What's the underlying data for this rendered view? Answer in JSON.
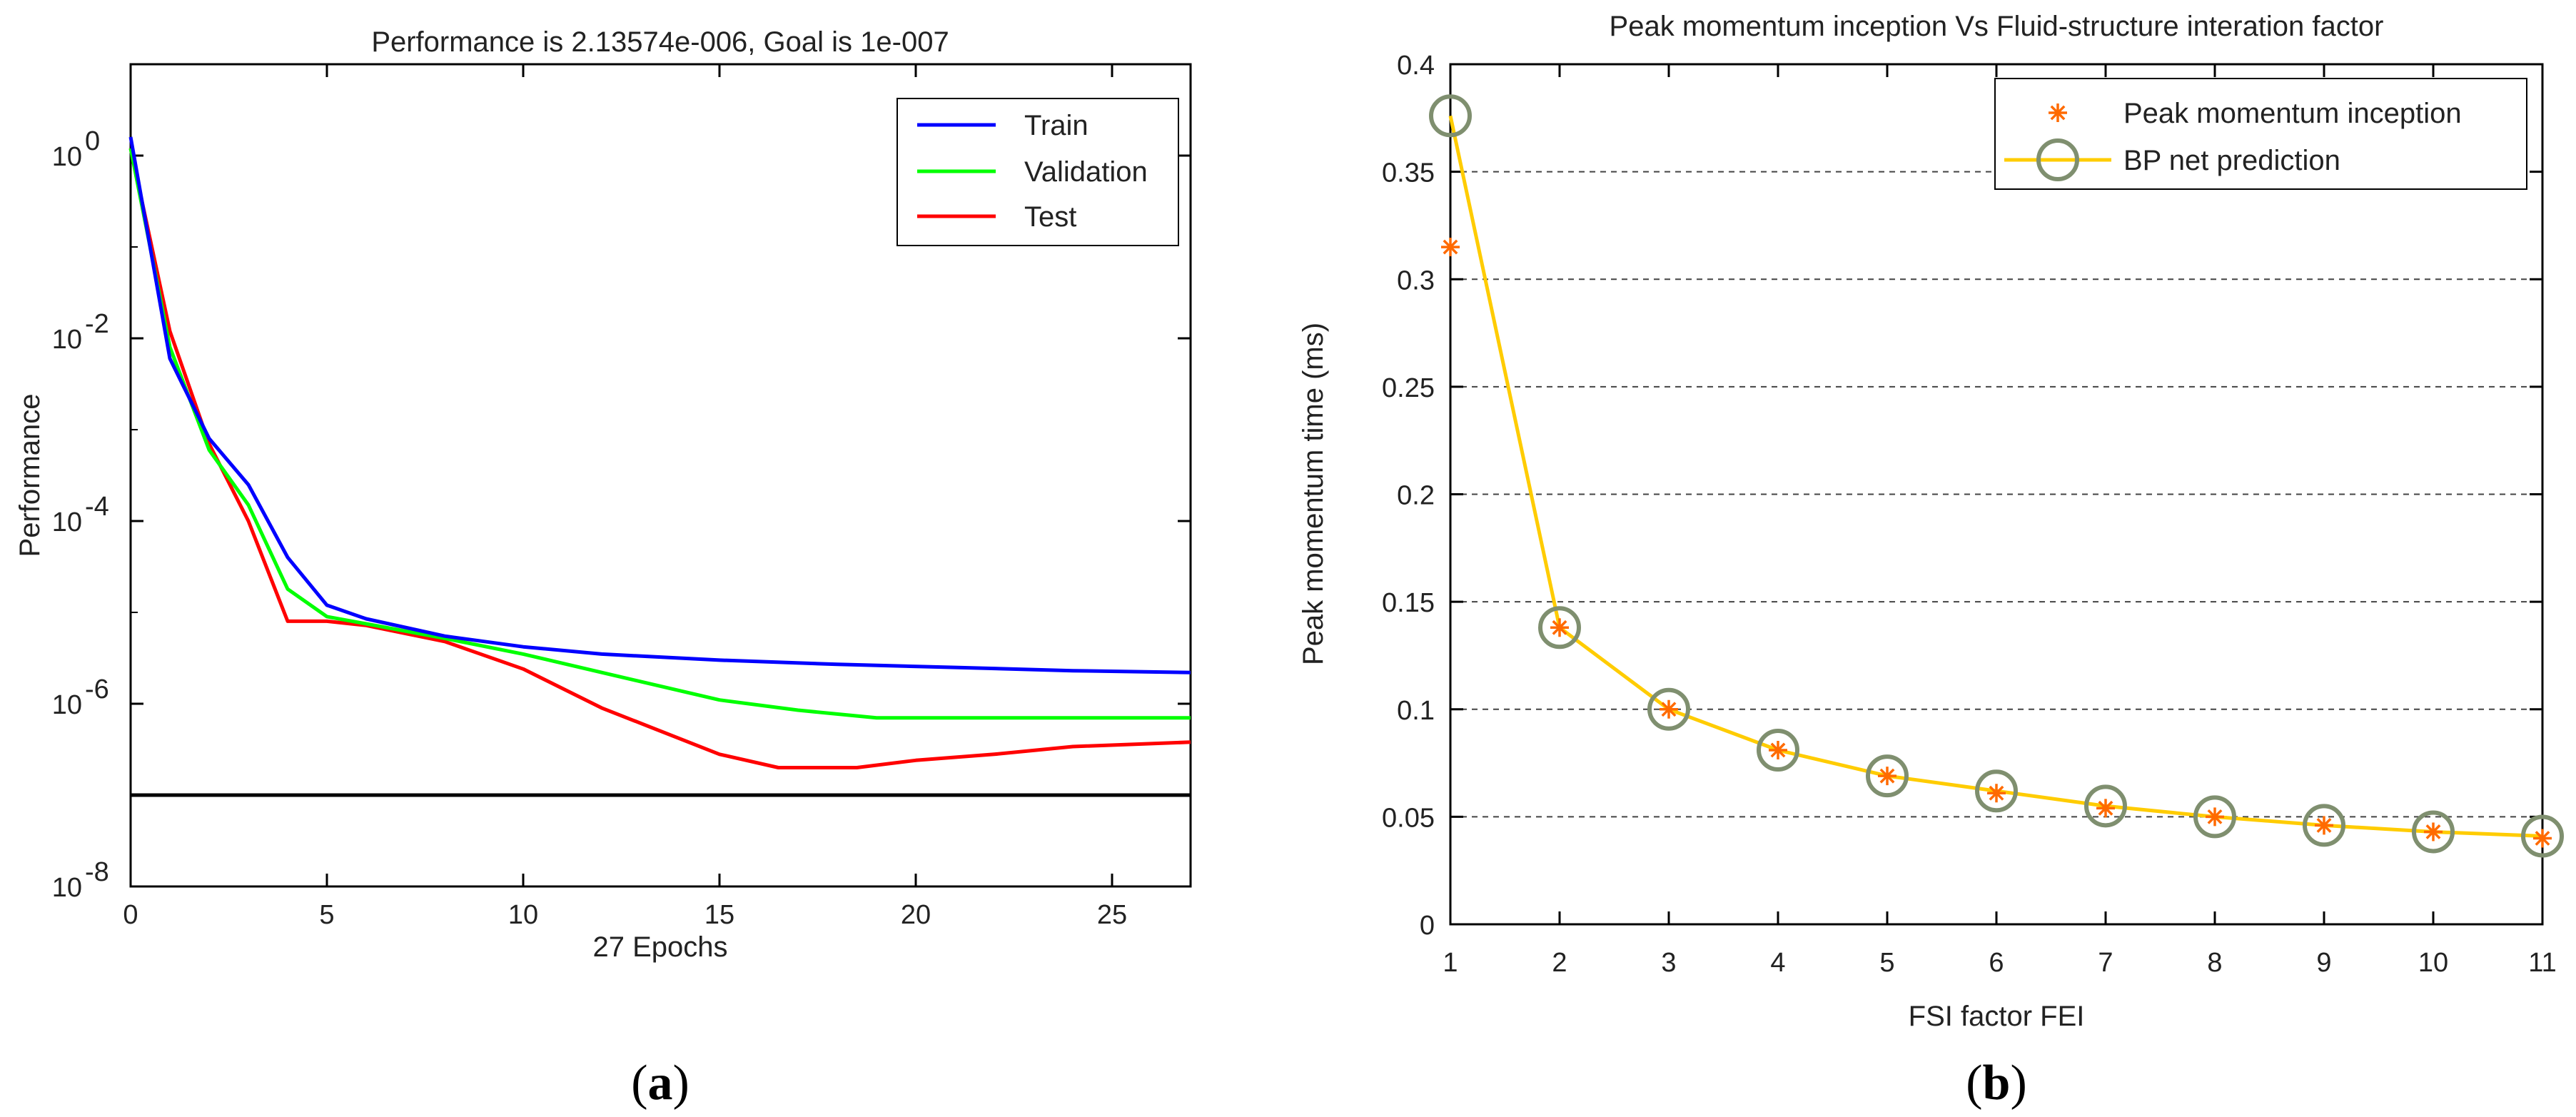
{
  "chart_data": [
    {
      "type": "line",
      "panel": "a",
      "title": "Performance is 2.13574e-006, Goal is 1e-007",
      "xlabel": "27 Epochs",
      "ylabel": "Performance",
      "yscale": "log",
      "xlim": [
        0,
        27
      ],
      "ylim_exponent": [
        -8,
        1
      ],
      "xticks": [
        "0",
        "5",
        "10",
        "15",
        "20",
        "25"
      ],
      "xtick_values": [
        0,
        5,
        10,
        15,
        20,
        25
      ],
      "yticks": [
        {
          "base": "10",
          "exp": "0",
          "e": 0
        },
        {
          "base": "10",
          "exp": "-2",
          "e": -2
        },
        {
          "base": "10",
          "exp": "-4",
          "e": -4
        },
        {
          "base": "10",
          "exp": "-6",
          "e": -6
        },
        {
          "base": "10",
          "exp": "-8",
          "e": -8
        }
      ],
      "legend_position": "top-right",
      "goal": {
        "value": 1e-07,
        "color": "#000000"
      },
      "series": [
        {
          "name": "Train",
          "color": "#0000ff",
          "x": [
            0,
            1,
            2,
            3,
            4,
            5,
            6,
            8,
            10,
            12,
            15,
            18,
            21,
            24,
            27
          ],
          "y": [
            1.6,
            0.006,
            0.0008,
            0.00025,
            4e-05,
            1.2e-05,
            8.5e-06,
            5.5e-06,
            4.2e-06,
            3.5e-06,
            3e-06,
            2.7e-06,
            2.5e-06,
            2.3e-06,
            2.2e-06
          ]
        },
        {
          "name": "Validation",
          "color": "#00ff00",
          "x": [
            0,
            1,
            2,
            3,
            4,
            5,
            6,
            8,
            10,
            12,
            15,
            17,
            19,
            21,
            24,
            27
          ],
          "y": [
            1.2,
            0.008,
            0.0006,
            0.00015,
            1.8e-05,
            9e-06,
            7.5e-06,
            5.2e-06,
            3.5e-06,
            2.2e-06,
            1.1e-06,
            8.5e-07,
            7e-07,
            7e-07,
            7e-07,
            7e-07
          ]
        },
        {
          "name": "Test",
          "color": "#ff0000",
          "x": [
            0,
            1,
            2,
            3,
            4,
            5,
            6,
            8,
            10,
            12,
            15,
            16.5,
            18.5,
            20,
            22,
            24,
            27
          ],
          "y": [
            1.2,
            0.012,
            0.0007,
            0.0001,
            8e-06,
            8e-06,
            7.2e-06,
            4.8e-06,
            2.4e-06,
            9e-07,
            2.8e-07,
            2e-07,
            2e-07,
            2.4e-07,
            2.8e-07,
            3.4e-07,
            3.8e-07
          ]
        }
      ]
    },
    {
      "type": "line",
      "panel": "b",
      "title": "Peak momentum inception Vs Fluid-structure interation factor",
      "xlabel": "FSI factor FEI",
      "ylabel": "Peak momentum time (ms)",
      "xlim": [
        1,
        11
      ],
      "ylim": [
        0,
        0.4
      ],
      "xticks": [
        "1",
        "2",
        "3",
        "4",
        "5",
        "6",
        "7",
        "8",
        "9",
        "10",
        "11"
      ],
      "xtick_values": [
        1,
        2,
        3,
        4,
        5,
        6,
        7,
        8,
        9,
        10,
        11
      ],
      "yticks": [
        "0",
        "0.05",
        "0.1",
        "0.15",
        "0.2",
        "0.25",
        "0.3",
        "0.35",
        "0.4"
      ],
      "ytick_values": [
        0,
        0.05,
        0.1,
        0.15,
        0.2,
        0.25,
        0.3,
        0.35,
        0.4
      ],
      "grid": "horizontal dashed",
      "legend_position": "top-right",
      "series": [
        {
          "name": "Peak momentum inception",
          "marker": "asterisk",
          "color": "#ff6a00",
          "x": [
            1,
            2,
            3,
            4,
            5,
            6,
            7,
            8,
            9,
            10,
            11
          ],
          "y": [
            0.315,
            0.138,
            0.1,
            0.081,
            0.069,
            0.061,
            0.054,
            0.05,
            0.046,
            0.043,
            0.04
          ]
        },
        {
          "name": "BP net prediction",
          "marker": "circle",
          "color": "#ffcc00",
          "marker_color": "#7f8f6f",
          "x": [
            1,
            2,
            3,
            4,
            5,
            6,
            7,
            8,
            9,
            10,
            11
          ],
          "y": [
            0.376,
            0.138,
            0.1,
            0.081,
            0.069,
            0.062,
            0.055,
            0.05,
            0.046,
            0.043,
            0.041
          ]
        }
      ]
    }
  ],
  "captions": [
    {
      "open": "(",
      "letter": "a",
      "close": ")"
    },
    {
      "open": "(",
      "letter": "b",
      "close": ")"
    }
  ]
}
